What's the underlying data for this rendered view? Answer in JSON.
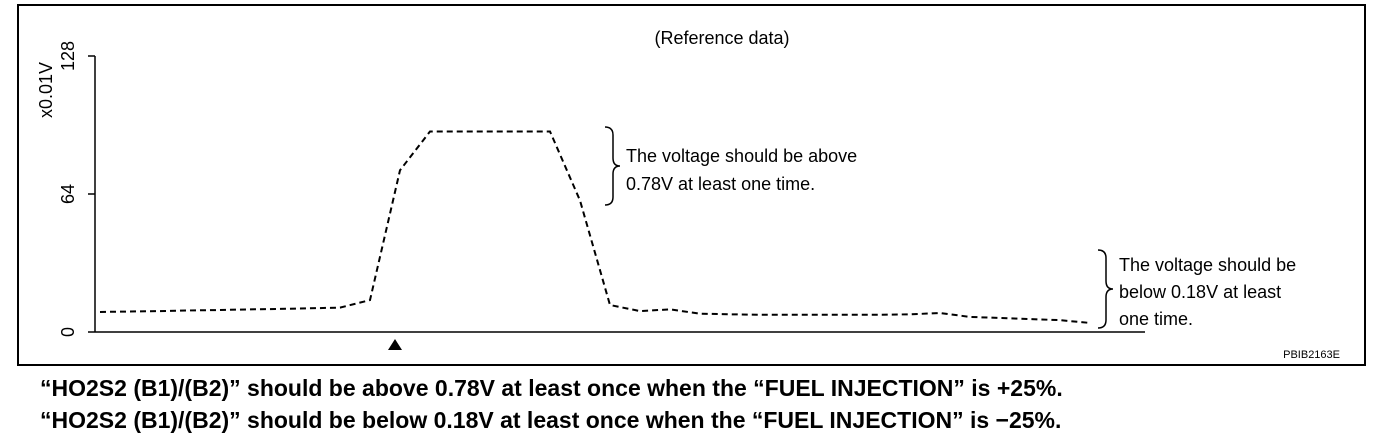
{
  "chart_data": {
    "type": "line",
    "title": "(Reference data)",
    "y_label": "x0.01V",
    "values": [
      9.3,
      9.5,
      9.7,
      10,
      10.2,
      10.5,
      10.7,
      11,
      11.3,
      14.8,
      75,
      93,
      93,
      93,
      93,
      93,
      61,
      12.5,
      9.7,
      10.5,
      8.5,
      8.2,
      8,
      8,
      8,
      8,
      8,
      8.2,
      8.8,
      7,
      6.5,
      6,
      5.5,
      4.2
    ],
    "color": "#000000",
    "line_style": "dashed",
    "ylim": [
      0,
      128
    ],
    "yticks": [
      0,
      64,
      128
    ],
    "annotations": [
      {
        "lines": [
          "The voltage should be above",
          "0.78V at least one time."
        ]
      },
      {
        "lines": [
          "The voltage should be",
          "below 0.18V at least",
          "one time."
        ]
      }
    ],
    "figure_code": "PBIB2163E"
  },
  "captions": [
    "“HO2S2 (B1)/(B2)” should be above 0.78V at least once when the “FUEL INJECTION” is +25%.",
    "“HO2S2 (B1)/(B2)” should be below 0.18V at least once when the “FUEL INJECTION” is −25%."
  ]
}
